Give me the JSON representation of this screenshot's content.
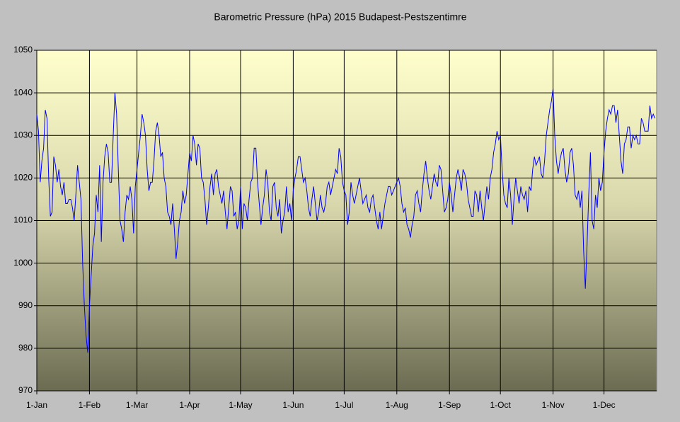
{
  "chart_data": {
    "type": "line",
    "title": "Barometric Pressure (hPa) 2015 Budapest-Pestszentimre",
    "color": "#0000ff",
    "grid": true,
    "xlim": [
      0,
      365
    ],
    "ylim": [
      970,
      1050
    ],
    "yticks": [
      970,
      980,
      990,
      1000,
      1010,
      1020,
      1030,
      1040,
      1050
    ],
    "xticks": [
      {
        "value": 0,
        "label": "1-Jan"
      },
      {
        "value": 31,
        "label": "1-Feb"
      },
      {
        "value": 59,
        "label": "1-Mar"
      },
      {
        "value": 90,
        "label": "1-Apr"
      },
      {
        "value": 120,
        "label": "1-May"
      },
      {
        "value": 151,
        "label": "1-Jun"
      },
      {
        "value": 181,
        "label": "1-Jul"
      },
      {
        "value": 212,
        "label": "1-Aug"
      },
      {
        "value": 243,
        "label": "1-Sep"
      },
      {
        "value": 273,
        "label": "1-Oct"
      },
      {
        "value": 304,
        "label": "1-Nov"
      },
      {
        "value": 334,
        "label": "1-Dec"
      }
    ],
    "x": [
      0,
      1,
      2,
      3,
      4,
      5,
      6,
      7,
      8,
      9,
      10,
      11,
      12,
      13,
      14,
      15,
      16,
      17,
      18,
      19,
      20,
      21,
      22,
      23,
      24,
      25,
      26,
      27,
      28,
      29,
      30,
      31,
      32,
      33,
      34,
      35,
      36,
      37,
      38,
      39,
      40,
      41,
      42,
      43,
      44,
      45,
      46,
      47,
      48,
      49,
      50,
      51,
      52,
      53,
      54,
      55,
      56,
      57,
      58,
      59,
      60,
      61,
      62,
      63,
      64,
      65,
      66,
      67,
      68,
      69,
      70,
      71,
      72,
      73,
      74,
      75,
      76,
      77,
      78,
      79,
      80,
      81,
      82,
      83,
      84,
      85,
      86,
      87,
      88,
      89,
      90,
      91,
      92,
      93,
      94,
      95,
      96,
      97,
      98,
      99,
      100,
      101,
      102,
      103,
      104,
      105,
      106,
      107,
      108,
      109,
      110,
      111,
      112,
      113,
      114,
      115,
      116,
      117,
      118,
      119,
      120,
      121,
      122,
      123,
      124,
      125,
      126,
      127,
      128,
      129,
      130,
      131,
      132,
      133,
      134,
      135,
      136,
      137,
      138,
      139,
      140,
      141,
      142,
      143,
      144,
      145,
      146,
      147,
      148,
      149,
      150,
      151,
      152,
      153,
      154,
      155,
      156,
      157,
      158,
      159,
      160,
      161,
      162,
      163,
      164,
      165,
      166,
      167,
      168,
      169,
      170,
      171,
      172,
      173,
      174,
      175,
      176,
      177,
      178,
      179,
      180,
      181,
      182,
      183,
      184,
      185,
      186,
      187,
      188,
      189,
      190,
      191,
      192,
      193,
      194,
      195,
      196,
      197,
      198,
      199,
      200,
      201,
      202,
      203,
      204,
      205,
      206,
      207,
      208,
      209,
      210,
      211,
      212,
      213,
      214,
      215,
      216,
      217,
      218,
      219,
      220,
      221,
      222,
      223,
      224,
      225,
      226,
      227,
      228,
      229,
      230,
      231,
      232,
      233,
      234,
      235,
      236,
      237,
      238,
      239,
      240,
      241,
      242,
      243,
      244,
      245,
      246,
      247,
      248,
      249,
      250,
      251,
      252,
      253,
      254,
      255,
      256,
      257,
      258,
      259,
      260,
      261,
      262,
      263,
      264,
      265,
      266,
      267,
      268,
      269,
      270,
      271,
      272,
      273,
      274,
      275,
      276,
      277,
      278,
      279,
      280,
      281,
      282,
      283,
      284,
      285,
      286,
      287,
      288,
      289,
      290,
      291,
      292,
      293,
      294,
      295,
      296,
      297,
      298,
      299,
      300,
      301,
      302,
      303,
      304,
      305,
      306,
      307,
      308,
      309,
      310,
      311,
      312,
      313,
      314,
      315,
      316,
      317,
      318,
      319,
      320,
      321,
      322,
      323,
      324,
      325,
      326,
      327,
      328,
      329,
      330,
      331,
      332,
      333,
      334,
      335,
      336,
      337,
      338,
      339,
      340,
      341,
      342,
      343,
      344,
      345,
      346,
      347,
      348,
      349,
      350,
      351,
      352,
      353,
      354,
      355,
      356,
      357,
      358,
      359,
      360,
      361,
      362,
      363,
      364
    ],
    "values": [
      1035,
      1031,
      1019,
      1024,
      1027,
      1036,
      1034,
      1020,
      1011,
      1012,
      1025,
      1023,
      1019,
      1022,
      1018,
      1016,
      1019,
      1014,
      1014,
      1015,
      1015,
      1013,
      1010,
      1016,
      1023,
      1019,
      1015,
      1000,
      990,
      983,
      979,
      990,
      997,
      1004,
      1007,
      1016,
      1012,
      1023,
      1005,
      1019,
      1025,
      1028,
      1026,
      1019,
      1019,
      1030,
      1040,
      1035,
      1022,
      1010,
      1008,
      1005,
      1012,
      1016,
      1015,
      1018,
      1015,
      1007,
      1018,
      1022,
      1026,
      1030,
      1035,
      1033,
      1030,
      1022,
      1017,
      1019,
      1019,
      1024,
      1031,
      1033,
      1030,
      1025,
      1026,
      1020,
      1018,
      1012,
      1011,
      1009,
      1014,
      1008,
      1001,
      1005,
      1010,
      1012,
      1017,
      1014,
      1016,
      1021,
      1026,
      1024,
      1030,
      1028,
      1023,
      1028,
      1027,
      1020,
      1019,
      1015,
      1009,
      1013,
      1018,
      1021,
      1016,
      1021,
      1022,
      1018,
      1016,
      1014,
      1017,
      1012,
      1008,
      1013,
      1018,
      1017,
      1011,
      1012,
      1008,
      1010,
      1018,
      1008,
      1014,
      1013,
      1010,
      1015,
      1019,
      1020,
      1027,
      1027,
      1019,
      1014,
      1009,
      1013,
      1016,
      1022,
      1019,
      1012,
      1010,
      1018,
      1019,
      1013,
      1011,
      1015,
      1007,
      1010,
      1012,
      1018,
      1012,
      1014,
      1010,
      1017,
      1020,
      1022,
      1025,
      1025,
      1022,
      1019,
      1020,
      1017,
      1013,
      1011,
      1015,
      1018,
      1014,
      1010,
      1012,
      1016,
      1013,
      1012,
      1014,
      1018,
      1019,
      1016,
      1018,
      1020,
      1022,
      1021,
      1027,
      1025,
      1019,
      1017,
      1016,
      1009,
      1012,
      1019,
      1016,
      1014,
      1016,
      1018,
      1020,
      1017,
      1014,
      1015,
      1016,
      1013,
      1012,
      1015,
      1016,
      1013,
      1010,
      1008,
      1012,
      1008,
      1011,
      1014,
      1016,
      1018,
      1018,
      1016,
      1017,
      1018,
      1019,
      1020,
      1018,
      1014,
      1012,
      1013,
      1009,
      1008,
      1006,
      1009,
      1011,
      1016,
      1017,
      1014,
      1012,
      1017,
      1021,
      1024,
      1020,
      1017,
      1015,
      1018,
      1021,
      1019,
      1018,
      1023,
      1022,
      1017,
      1012,
      1013,
      1015,
      1019,
      1016,
      1012,
      1016,
      1020,
      1022,
      1020,
      1017,
      1022,
      1021,
      1019,
      1015,
      1013,
      1011,
      1011,
      1017,
      1016,
      1012,
      1017,
      1013,
      1010,
      1014,
      1018,
      1015,
      1020,
      1022,
      1026,
      1028,
      1031,
      1029,
      1030,
      1022,
      1016,
      1014,
      1013,
      1020,
      1016,
      1009,
      1015,
      1020,
      1017,
      1014,
      1018,
      1016,
      1015,
      1017,
      1012,
      1018,
      1017,
      1022,
      1025,
      1023,
      1024,
      1025,
      1021,
      1020,
      1024,
      1030,
      1033,
      1036,
      1038,
      1041,
      1030,
      1024,
      1021,
      1024,
      1026,
      1027,
      1022,
      1019,
      1021,
      1026,
      1027,
      1023,
      1016,
      1015,
      1017,
      1013,
      1017,
      1003,
      994,
      1004,
      1016,
      1026,
      1010,
      1008,
      1016,
      1013,
      1020,
      1017,
      1019,
      1026,
      1031,
      1034,
      1036,
      1035,
      1037,
      1037,
      1033,
      1036,
      1030,
      1024,
      1021,
      1028,
      1029,
      1032,
      1032,
      1027,
      1030,
      1029,
      1030,
      1028,
      1028,
      1034,
      1033,
      1031,
      1031,
      1031,
      1037,
      1034,
      1035,
      1034
    ]
  }
}
